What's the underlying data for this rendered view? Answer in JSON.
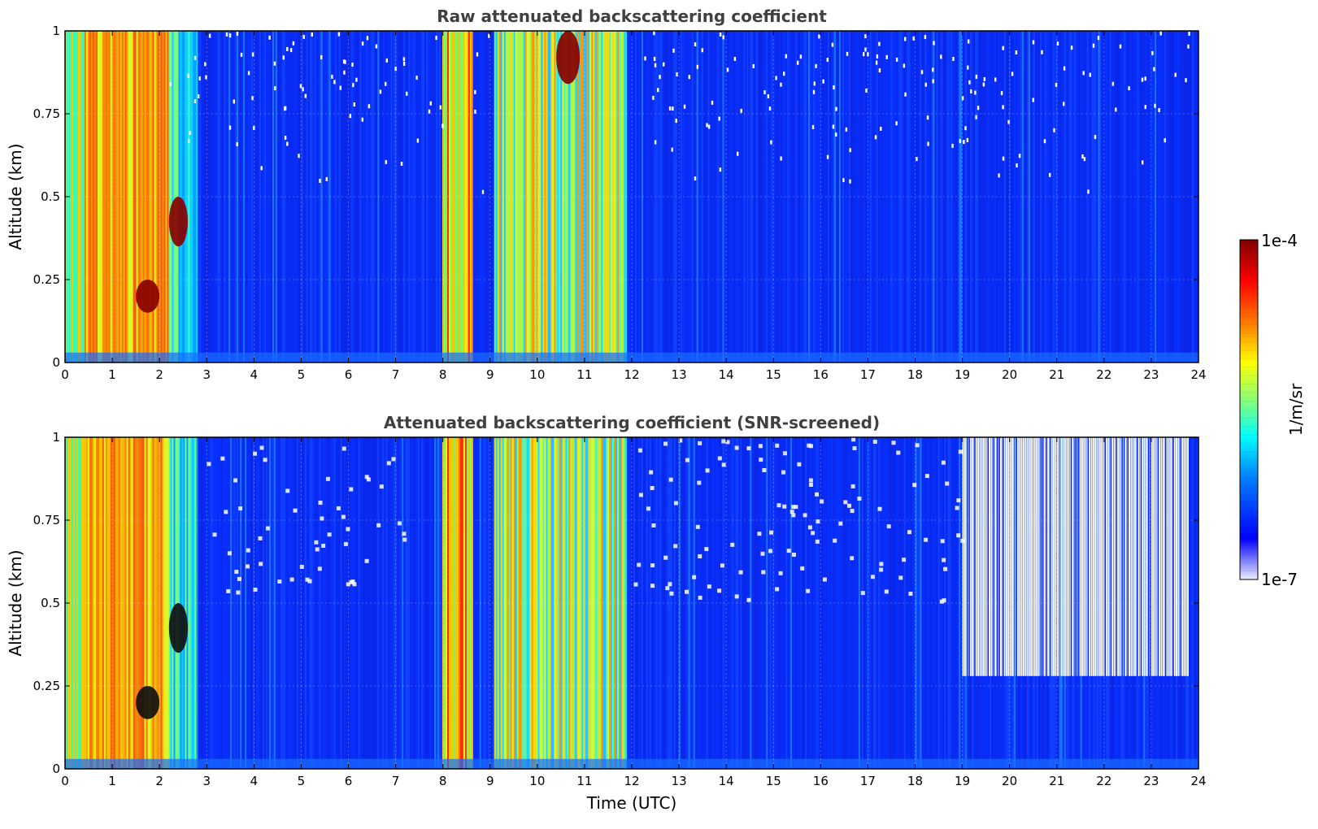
{
  "chart_data": [
    {
      "type": "heatmap",
      "title": "Raw attenuated backscattering coefficient",
      "ylabel": "Altitude (km)",
      "xlabel": "",
      "xlim": [
        0,
        24
      ],
      "ylim": [
        0,
        1
      ],
      "x_ticks": [
        "0",
        "1",
        "2",
        "3",
        "4",
        "5",
        "6",
        "7",
        "8",
        "9",
        "10",
        "11",
        "12",
        "13",
        "14",
        "15",
        "16",
        "17",
        "18",
        "19",
        "20",
        "21",
        "22",
        "23",
        "24"
      ],
      "y_ticks": [
        "0",
        "0.25",
        "0.5",
        "0.75",
        "1"
      ],
      "grid": true,
      "colorscale": "jet (log)",
      "features": [
        {
          "x_range": [
            0.0,
            2.2
          ],
          "alt_range": [
            0.0,
            1.0
          ],
          "level": "high (orange/red/yellow)"
        },
        {
          "x_range": [
            1.5,
            2.0
          ],
          "alt_range": [
            0.15,
            0.25
          ],
          "level": "very high (dark red)"
        },
        {
          "x_range": [
            2.2,
            2.6
          ],
          "alt_range": [
            0.35,
            0.5
          ],
          "level": "very high (dark red)"
        },
        {
          "x_range": [
            8.0,
            8.6
          ],
          "alt_range": [
            0.0,
            1.0
          ],
          "level": "high (yellow/orange)"
        },
        {
          "x_range": [
            9.1,
            11.9
          ],
          "alt_range": [
            0.0,
            1.0
          ],
          "level": "high (yellow/green)"
        },
        {
          "x_range": [
            10.4,
            10.9
          ],
          "alt_range": [
            0.84,
            1.0
          ],
          "level": "very high (dark red)"
        },
        {
          "x_range": [
            2.8,
            24.0
          ],
          "alt_range": [
            0.0,
            0.5
          ],
          "level": "low (blue)"
        }
      ]
    },
    {
      "type": "heatmap",
      "title": "Attenuated backscattering coefficient (SNR-screened)",
      "ylabel": "Altitude (km)",
      "xlabel": "Time (UTC)",
      "xlim": [
        0,
        24
      ],
      "ylim": [
        0,
        1
      ],
      "x_ticks": [
        "0",
        "1",
        "2",
        "3",
        "4",
        "5",
        "6",
        "7",
        "8",
        "9",
        "10",
        "11",
        "12",
        "13",
        "14",
        "15",
        "16",
        "17",
        "18",
        "19",
        "20",
        "21",
        "22",
        "23",
        "24"
      ],
      "y_ticks": [
        "0",
        "0.25",
        "0.5",
        "0.75",
        "1"
      ],
      "grid": true,
      "colorscale": "jet (log)",
      "features": [
        {
          "x_range": [
            0.0,
            2.2
          ],
          "alt_range": [
            0.0,
            1.0
          ],
          "level": "high (orange/red/yellow)"
        },
        {
          "x_range": [
            1.5,
            2.0
          ],
          "alt_range": [
            0.15,
            0.25
          ],
          "level": "very high (black)"
        },
        {
          "x_range": [
            2.2,
            2.6
          ],
          "alt_range": [
            0.35,
            0.5
          ],
          "level": "very high (black)"
        },
        {
          "x_range": [
            8.0,
            8.6
          ],
          "alt_range": [
            0.0,
            1.0
          ],
          "level": "high (yellow/orange)"
        },
        {
          "x_range": [
            9.1,
            11.9
          ],
          "alt_range": [
            0.0,
            1.0
          ],
          "level": "high (yellow/green)"
        },
        {
          "x_range": [
            19.0,
            23.8
          ],
          "alt_range": [
            0.28,
            1.0
          ],
          "level": "screened out (white)"
        },
        {
          "x_range": [
            2.8,
            24.0
          ],
          "alt_range": [
            0.0,
            0.5
          ],
          "level": "low (blue)"
        }
      ]
    }
  ],
  "colorbar": {
    "max_label": "1e-4",
    "min_label": "1e-7",
    "unit_label": "1/m/sr",
    "colors": [
      "#7f0000",
      "#ff0000",
      "#ff7f00",
      "#ffff00",
      "#7fff7f",
      "#00ffff",
      "#007fff",
      "#0000ff",
      "#e8e8ff"
    ]
  }
}
